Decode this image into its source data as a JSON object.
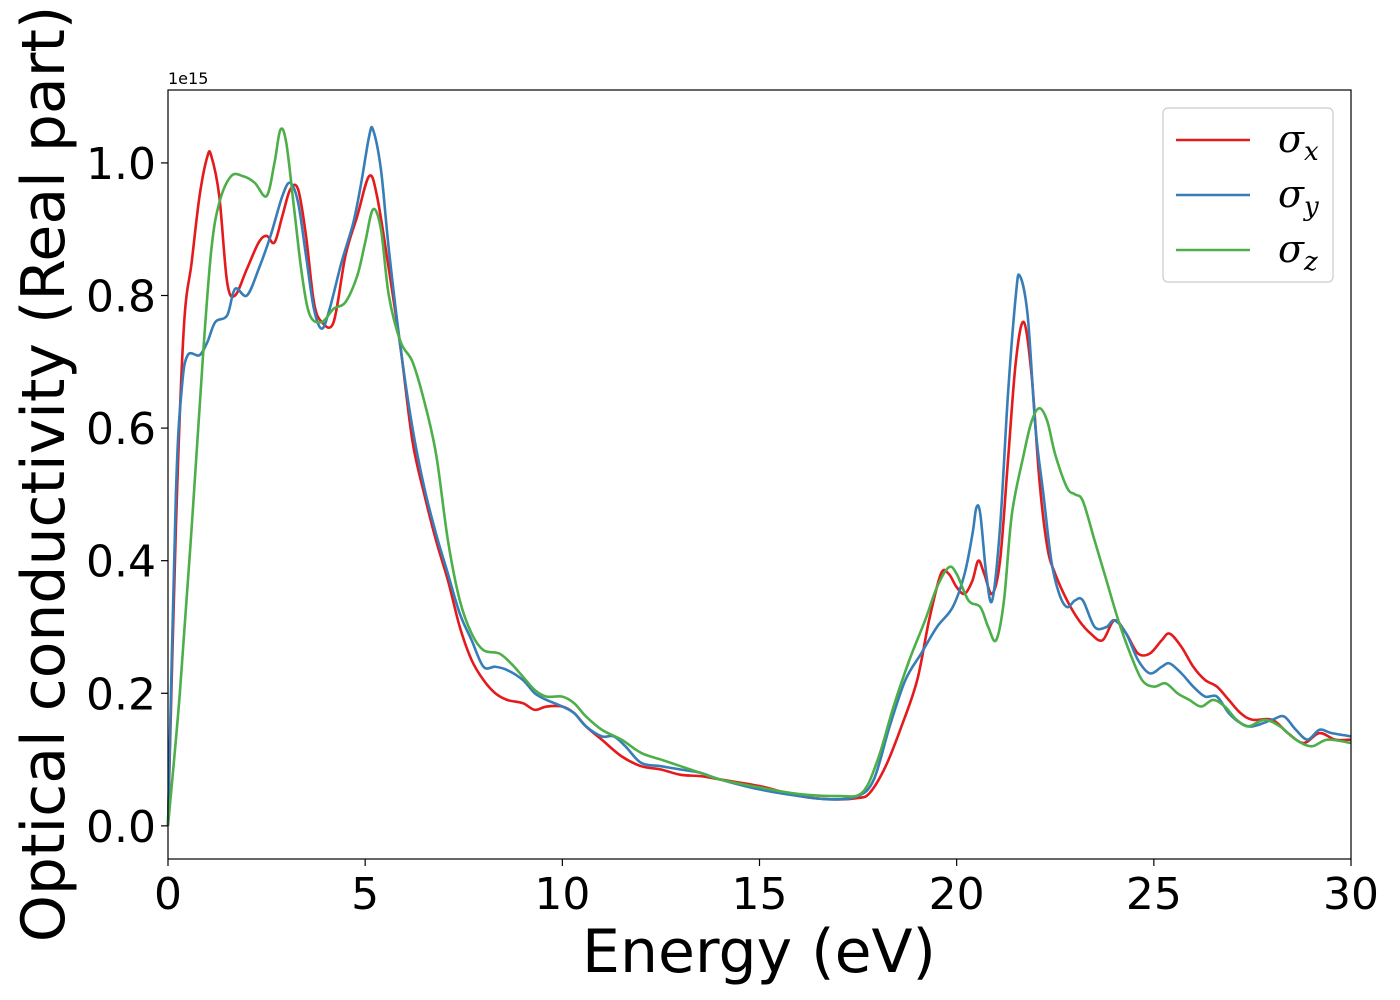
{
  "chart_data": {
    "type": "line",
    "xlabel": "Energy (eV)",
    "ylabel": "Optical conductivity (Real part)",
    "y_offset_label": "1e15",
    "xlim": [
      0,
      30
    ],
    "ylim": [
      -0.05,
      1.11
    ],
    "x_ticks": [
      0,
      5,
      10,
      15,
      20,
      25,
      30
    ],
    "x_tick_labels": [
      "0",
      "5",
      "10",
      "15",
      "20",
      "25",
      "30"
    ],
    "y_ticks": [
      0.0,
      0.2,
      0.4,
      0.6,
      0.8,
      1.0
    ],
    "y_tick_labels": [
      "0.0",
      "0.2",
      "0.4",
      "0.6",
      "0.8",
      "1.0"
    ],
    "grid": false,
    "legend_position": "top-right",
    "series": [
      {
        "name": "σx",
        "symbol": "σ",
        "subscript": "x",
        "color": "#e41a1c",
        "points": [
          [
            0,
            0
          ],
          [
            0.2,
            0.45
          ],
          [
            0.4,
            0.75
          ],
          [
            0.6,
            0.85
          ],
          [
            0.8,
            0.95
          ],
          [
            1.0,
            1.01
          ],
          [
            1.1,
            1.01
          ],
          [
            1.3,
            0.95
          ],
          [
            1.5,
            0.82
          ],
          [
            1.7,
            0.8
          ],
          [
            2.0,
            0.84
          ],
          [
            2.3,
            0.88
          ],
          [
            2.5,
            0.89
          ],
          [
            2.7,
            0.88
          ],
          [
            2.9,
            0.92
          ],
          [
            3.1,
            0.96
          ],
          [
            3.3,
            0.96
          ],
          [
            3.5,
            0.89
          ],
          [
            3.7,
            0.79
          ],
          [
            3.9,
            0.76
          ],
          [
            4.2,
            0.76
          ],
          [
            4.5,
            0.86
          ],
          [
            4.8,
            0.92
          ],
          [
            5.1,
            0.98
          ],
          [
            5.3,
            0.95
          ],
          [
            5.6,
            0.84
          ],
          [
            5.9,
            0.72
          ],
          [
            6.2,
            0.58
          ],
          [
            6.5,
            0.5
          ],
          [
            6.8,
            0.43
          ],
          [
            7.1,
            0.37
          ],
          [
            7.4,
            0.3
          ],
          [
            7.7,
            0.25
          ],
          [
            8.0,
            0.22
          ],
          [
            8.3,
            0.2
          ],
          [
            8.6,
            0.19
          ],
          [
            9.0,
            0.185
          ],
          [
            9.3,
            0.175
          ],
          [
            9.6,
            0.18
          ],
          [
            10.0,
            0.18
          ],
          [
            10.3,
            0.17
          ],
          [
            10.6,
            0.15
          ],
          [
            11.0,
            0.13
          ],
          [
            11.5,
            0.105
          ],
          [
            12.0,
            0.09
          ],
          [
            12.5,
            0.085
          ],
          [
            13.0,
            0.077
          ],
          [
            13.5,
            0.075
          ],
          [
            14.0,
            0.07
          ],
          [
            15.0,
            0.06
          ],
          [
            16.0,
            0.045
          ],
          [
            16.8,
            0.04
          ],
          [
            17.5,
            0.042
          ],
          [
            17.8,
            0.05
          ],
          [
            18.2,
            0.09
          ],
          [
            18.6,
            0.15
          ],
          [
            19.0,
            0.22
          ],
          [
            19.3,
            0.31
          ],
          [
            19.6,
            0.38
          ],
          [
            19.8,
            0.38
          ],
          [
            20.0,
            0.36
          ],
          [
            20.2,
            0.35
          ],
          [
            20.4,
            0.37
          ],
          [
            20.55,
            0.4
          ],
          [
            20.7,
            0.38
          ],
          [
            20.9,
            0.35
          ],
          [
            21.1,
            0.4
          ],
          [
            21.3,
            0.55
          ],
          [
            21.5,
            0.7
          ],
          [
            21.7,
            0.76
          ],
          [
            21.9,
            0.68
          ],
          [
            22.1,
            0.52
          ],
          [
            22.3,
            0.42
          ],
          [
            22.5,
            0.38
          ],
          [
            22.8,
            0.34
          ],
          [
            23.1,
            0.31
          ],
          [
            23.4,
            0.29
          ],
          [
            23.7,
            0.28
          ],
          [
            24.0,
            0.31
          ],
          [
            24.3,
            0.29
          ],
          [
            24.6,
            0.26
          ],
          [
            24.9,
            0.26
          ],
          [
            25.2,
            0.28
          ],
          [
            25.4,
            0.29
          ],
          [
            25.7,
            0.27
          ],
          [
            26.0,
            0.24
          ],
          [
            26.3,
            0.22
          ],
          [
            26.6,
            0.21
          ],
          [
            26.9,
            0.19
          ],
          [
            27.2,
            0.17
          ],
          [
            27.5,
            0.16
          ],
          [
            28.0,
            0.16
          ],
          [
            28.4,
            0.14
          ],
          [
            28.8,
            0.125
          ],
          [
            29.2,
            0.14
          ],
          [
            29.6,
            0.13
          ],
          [
            30.0,
            0.13
          ]
        ]
      },
      {
        "name": "σy",
        "symbol": "σ",
        "subscript": "y",
        "color": "#377eb8",
        "points": [
          [
            0,
            0
          ],
          [
            0.2,
            0.5
          ],
          [
            0.35,
            0.66
          ],
          [
            0.5,
            0.71
          ],
          [
            0.8,
            0.71
          ],
          [
            1.0,
            0.73
          ],
          [
            1.2,
            0.76
          ],
          [
            1.5,
            0.77
          ],
          [
            1.7,
            0.81
          ],
          [
            2.0,
            0.8
          ],
          [
            2.3,
            0.84
          ],
          [
            2.6,
            0.89
          ],
          [
            2.9,
            0.95
          ],
          [
            3.1,
            0.97
          ],
          [
            3.3,
            0.94
          ],
          [
            3.5,
            0.86
          ],
          [
            3.7,
            0.78
          ],
          [
            3.9,
            0.75
          ],
          [
            4.1,
            0.78
          ],
          [
            4.4,
            0.85
          ],
          [
            4.7,
            0.91
          ],
          [
            4.9,
            0.97
          ],
          [
            5.1,
            1.04
          ],
          [
            5.2,
            1.05
          ],
          [
            5.4,
            0.99
          ],
          [
            5.6,
            0.87
          ],
          [
            5.9,
            0.72
          ],
          [
            6.2,
            0.6
          ],
          [
            6.5,
            0.51
          ],
          [
            6.8,
            0.44
          ],
          [
            7.1,
            0.38
          ],
          [
            7.4,
            0.32
          ],
          [
            7.7,
            0.28
          ],
          [
            8.0,
            0.24
          ],
          [
            8.3,
            0.24
          ],
          [
            8.6,
            0.235
          ],
          [
            9.0,
            0.22
          ],
          [
            9.3,
            0.2
          ],
          [
            9.6,
            0.19
          ],
          [
            10.0,
            0.18
          ],
          [
            10.3,
            0.17
          ],
          [
            10.6,
            0.15
          ],
          [
            11.0,
            0.135
          ],
          [
            11.3,
            0.135
          ],
          [
            11.6,
            0.12
          ],
          [
            12.0,
            0.095
          ],
          [
            12.5,
            0.09
          ],
          [
            13.0,
            0.085
          ],
          [
            13.5,
            0.08
          ],
          [
            14.0,
            0.07
          ],
          [
            15.0,
            0.055
          ],
          [
            16.0,
            0.045
          ],
          [
            16.8,
            0.04
          ],
          [
            17.5,
            0.045
          ],
          [
            17.9,
            0.07
          ],
          [
            18.3,
            0.15
          ],
          [
            18.7,
            0.22
          ],
          [
            19.1,
            0.26
          ],
          [
            19.5,
            0.3
          ],
          [
            19.9,
            0.33
          ],
          [
            20.2,
            0.38
          ],
          [
            20.4,
            0.44
          ],
          [
            20.5,
            0.48
          ],
          [
            20.6,
            0.47
          ],
          [
            20.75,
            0.38
          ],
          [
            20.9,
            0.34
          ],
          [
            21.1,
            0.45
          ],
          [
            21.3,
            0.65
          ],
          [
            21.5,
            0.8
          ],
          [
            21.6,
            0.83
          ],
          [
            21.8,
            0.77
          ],
          [
            22.0,
            0.6
          ],
          [
            22.2,
            0.5
          ],
          [
            22.4,
            0.4
          ],
          [
            22.6,
            0.35
          ],
          [
            22.8,
            0.33
          ],
          [
            23.0,
            0.34
          ],
          [
            23.2,
            0.34
          ],
          [
            23.5,
            0.3
          ],
          [
            23.8,
            0.3
          ],
          [
            24.0,
            0.31
          ],
          [
            24.3,
            0.29
          ],
          [
            24.6,
            0.25
          ],
          [
            24.9,
            0.23
          ],
          [
            25.2,
            0.24
          ],
          [
            25.4,
            0.245
          ],
          [
            25.7,
            0.23
          ],
          [
            26.0,
            0.21
          ],
          [
            26.3,
            0.195
          ],
          [
            26.6,
            0.195
          ],
          [
            26.9,
            0.17
          ],
          [
            27.2,
            0.155
          ],
          [
            27.5,
            0.15
          ],
          [
            28.0,
            0.16
          ],
          [
            28.3,
            0.165
          ],
          [
            28.6,
            0.145
          ],
          [
            28.9,
            0.13
          ],
          [
            29.2,
            0.145
          ],
          [
            29.5,
            0.14
          ],
          [
            30.0,
            0.135
          ]
        ]
      },
      {
        "name": "σz",
        "symbol": "σ",
        "subscript": "z",
        "color": "#4daf4a",
        "points": [
          [
            0,
            0
          ],
          [
            0.3,
            0.2
          ],
          [
            0.6,
            0.45
          ],
          [
            0.9,
            0.72
          ],
          [
            1.1,
            0.87
          ],
          [
            1.3,
            0.94
          ],
          [
            1.6,
            0.98
          ],
          [
            1.9,
            0.98
          ],
          [
            2.2,
            0.97
          ],
          [
            2.5,
            0.95
          ],
          [
            2.7,
            1.0
          ],
          [
            2.85,
            1.05
          ],
          [
            3.0,
            1.03
          ],
          [
            3.2,
            0.93
          ],
          [
            3.4,
            0.83
          ],
          [
            3.6,
            0.77
          ],
          [
            3.9,
            0.76
          ],
          [
            4.2,
            0.78
          ],
          [
            4.5,
            0.79
          ],
          [
            4.8,
            0.83
          ],
          [
            5.0,
            0.88
          ],
          [
            5.2,
            0.93
          ],
          [
            5.4,
            0.9
          ],
          [
            5.6,
            0.8
          ],
          [
            5.9,
            0.73
          ],
          [
            6.2,
            0.7
          ],
          [
            6.5,
            0.64
          ],
          [
            6.8,
            0.56
          ],
          [
            7.1,
            0.43
          ],
          [
            7.4,
            0.34
          ],
          [
            7.7,
            0.29
          ],
          [
            8.0,
            0.265
          ],
          [
            8.4,
            0.26
          ],
          [
            8.7,
            0.245
          ],
          [
            9.0,
            0.225
          ],
          [
            9.3,
            0.205
          ],
          [
            9.6,
            0.195
          ],
          [
            10.0,
            0.195
          ],
          [
            10.3,
            0.185
          ],
          [
            10.6,
            0.165
          ],
          [
            11.0,
            0.145
          ],
          [
            11.5,
            0.13
          ],
          [
            12.0,
            0.11
          ],
          [
            12.5,
            0.1
          ],
          [
            13.0,
            0.09
          ],
          [
            13.5,
            0.08
          ],
          [
            14.0,
            0.07
          ],
          [
            15.0,
            0.058
          ],
          [
            16.0,
            0.048
          ],
          [
            17.0,
            0.045
          ],
          [
            17.6,
            0.05
          ],
          [
            18.0,
            0.1
          ],
          [
            18.4,
            0.18
          ],
          [
            18.8,
            0.25
          ],
          [
            19.2,
            0.31
          ],
          [
            19.5,
            0.36
          ],
          [
            19.8,
            0.39
          ],
          [
            20.0,
            0.38
          ],
          [
            20.3,
            0.34
          ],
          [
            20.6,
            0.33
          ],
          [
            20.8,
            0.3
          ],
          [
            21.0,
            0.28
          ],
          [
            21.2,
            0.34
          ],
          [
            21.4,
            0.47
          ],
          [
            21.7,
            0.56
          ],
          [
            21.9,
            0.61
          ],
          [
            22.1,
            0.63
          ],
          [
            22.3,
            0.61
          ],
          [
            22.5,
            0.56
          ],
          [
            22.8,
            0.51
          ],
          [
            23.0,
            0.5
          ],
          [
            23.2,
            0.49
          ],
          [
            23.5,
            0.43
          ],
          [
            23.8,
            0.37
          ],
          [
            24.1,
            0.31
          ],
          [
            24.4,
            0.26
          ],
          [
            24.7,
            0.22
          ],
          [
            25.0,
            0.21
          ],
          [
            25.3,
            0.215
          ],
          [
            25.6,
            0.2
          ],
          [
            25.9,
            0.19
          ],
          [
            26.2,
            0.18
          ],
          [
            26.5,
            0.19
          ],
          [
            26.8,
            0.18
          ],
          [
            27.1,
            0.16
          ],
          [
            27.4,
            0.15
          ],
          [
            27.8,
            0.16
          ],
          [
            28.2,
            0.15
          ],
          [
            28.6,
            0.13
          ],
          [
            29.0,
            0.12
          ],
          [
            29.4,
            0.13
          ],
          [
            30.0,
            0.125
          ]
        ]
      }
    ]
  }
}
